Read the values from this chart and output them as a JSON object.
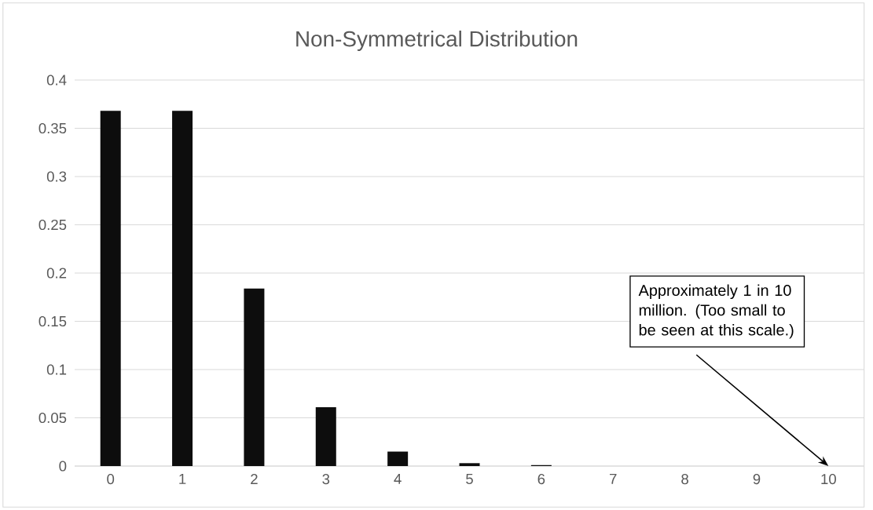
{
  "chart_data": {
    "type": "bar",
    "title": "Non-Symmetrical Distribution",
    "x": [
      0,
      1,
      2,
      3,
      4,
      5,
      6,
      7,
      8,
      9,
      10
    ],
    "values": [
      0.368,
      0.368,
      0.184,
      0.061,
      0.015,
      0.003,
      0.001,
      0,
      0,
      0,
      0
    ],
    "color": "#0d0d0d",
    "xlim": [
      -0.5,
      10.5
    ],
    "xticks": [
      0,
      1,
      2,
      3,
      4,
      5,
      6,
      7,
      8,
      9,
      10
    ],
    "ylim": [
      0,
      0.4
    ],
    "yticks": [
      0,
      0.05,
      0.1,
      0.15,
      0.2,
      0.25,
      0.3,
      0.35,
      0.4
    ],
    "grid": "y",
    "annotations": [
      {
        "text": "Approximately 1 in 10 million. (Too small to be seen at this scale.)",
        "x": 10,
        "y": 0
      }
    ]
  }
}
